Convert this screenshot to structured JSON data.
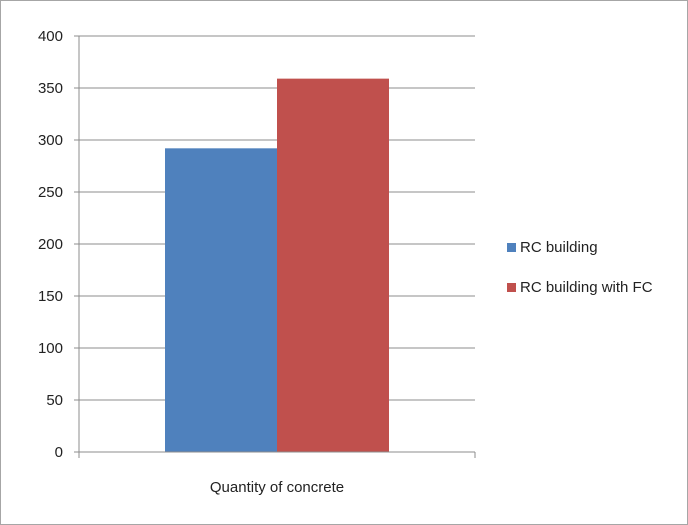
{
  "chart_data": {
    "type": "bar",
    "categories": [
      "Quantity of concrete"
    ],
    "series": [
      {
        "name": "RC building",
        "values": [
          292
        ],
        "color": "#4f81bd"
      },
      {
        "name": "RC building with FC",
        "values": [
          359
        ],
        "color": "#c0504d"
      }
    ],
    "yticks": [
      "0",
      "50",
      "100",
      "150",
      "200",
      "250",
      "300",
      "350",
      "400"
    ],
    "ylim": [
      0,
      400
    ],
    "title": "",
    "xlabel": "",
    "ylabel": "",
    "grid": true,
    "legend_position": "right"
  }
}
